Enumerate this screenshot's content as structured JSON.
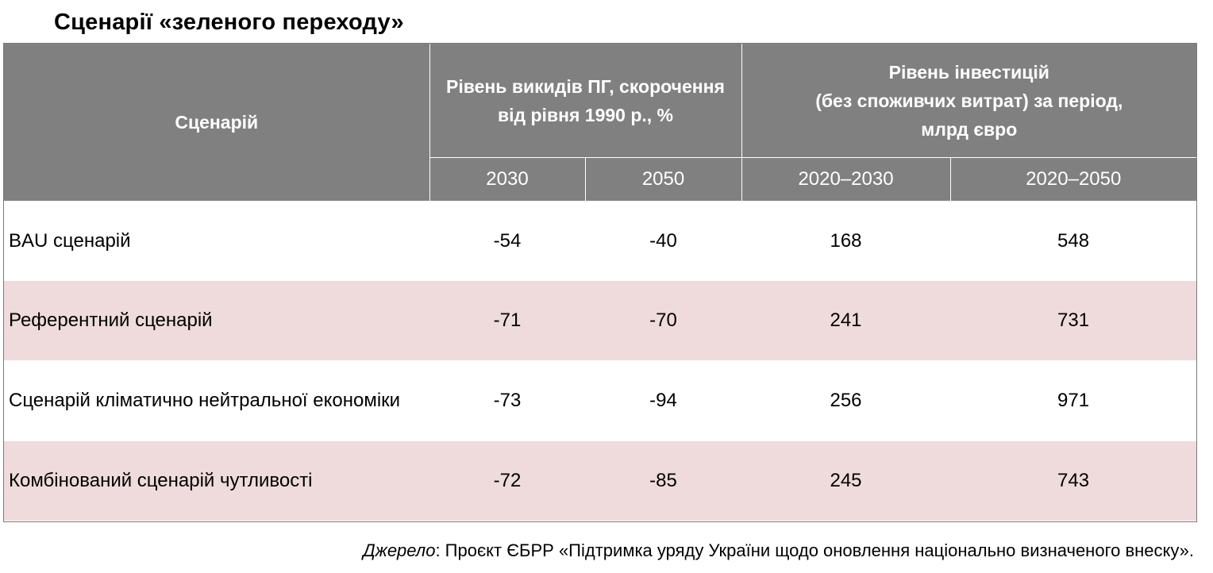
{
  "title": "Сценарії «зеленого переходу»",
  "table": {
    "header": {
      "scenario": "Сценарій",
      "emissions": "Рівень викидів ПГ, скорочення від рівня 1990 р., %",
      "investment_line1": "Рівень інвестицій",
      "investment_line2": "(без споживчих витрат) за період,",
      "investment_line3": "млрд євро"
    },
    "subheader": [
      "2030",
      "2050",
      "2020–2030",
      "2020–2050"
    ],
    "rows": [
      {
        "name": "BAU сценарій",
        "values": [
          "-54",
          "-40",
          "168",
          "548"
        ]
      },
      {
        "name": "Референтний сценарій",
        "values": [
          "-71",
          "-70",
          "241",
          "731"
        ]
      },
      {
        "name": "Сценарій кліматично нейтральної економіки",
        "values": [
          "-73",
          "-94",
          "256",
          "971"
        ]
      },
      {
        "name": "Комбінований сценарій чутливості",
        "values": [
          "-72",
          "-85",
          "245",
          "743"
        ]
      }
    ]
  },
  "source": {
    "label": "Джерело",
    "text": ": Проєкт ЄБРР «Підтримка уряду України щодо оновлення національно визначеного внеску»."
  }
}
